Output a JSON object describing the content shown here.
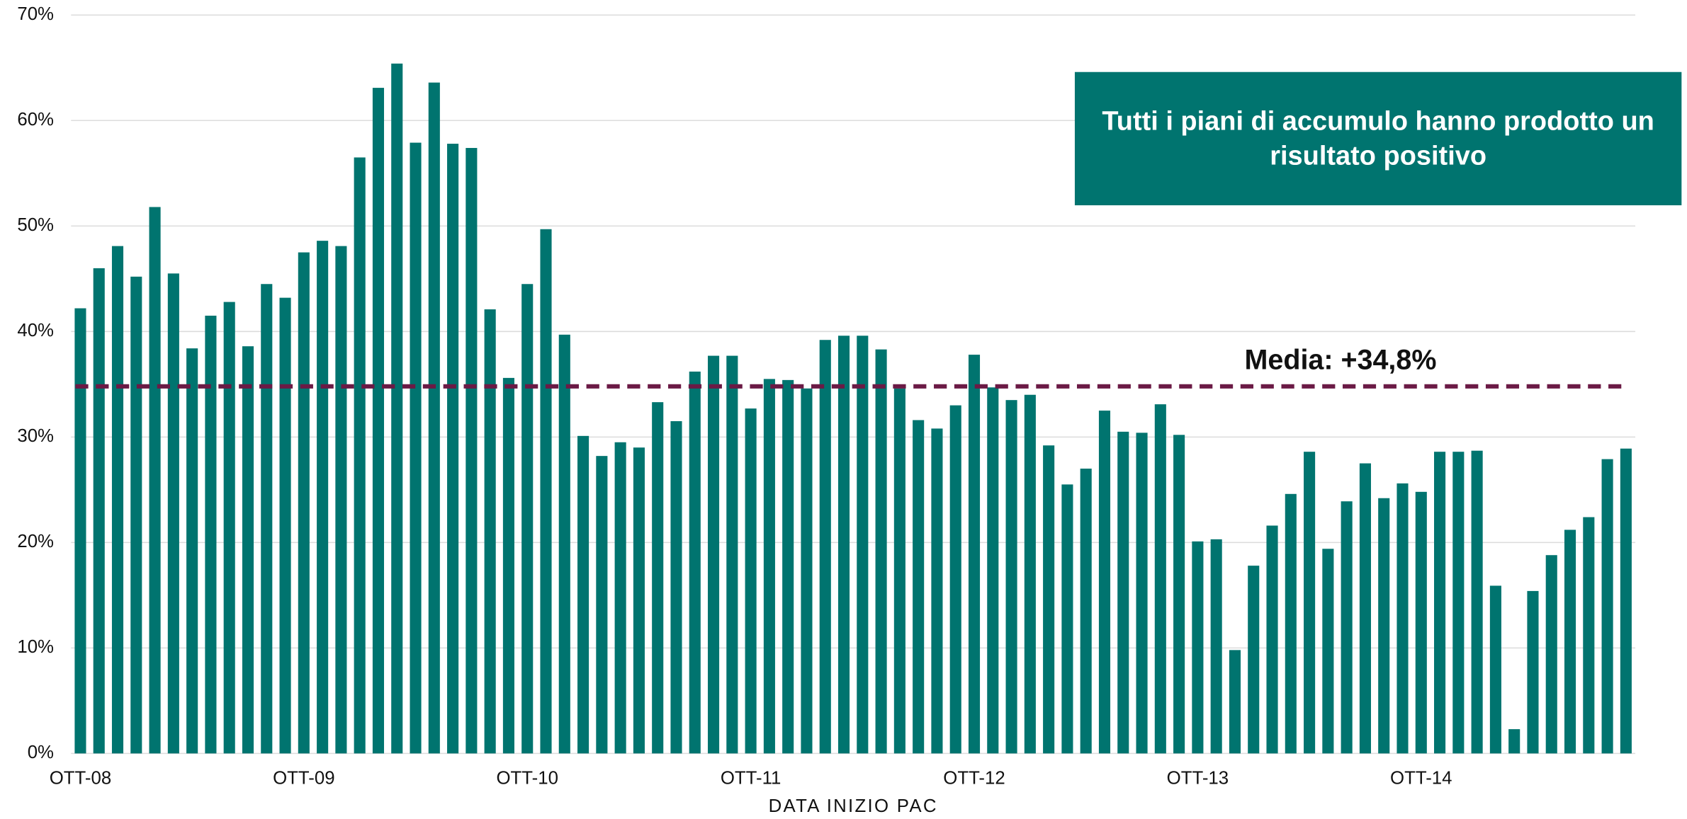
{
  "chart_data": {
    "type": "bar",
    "x_label": "DATA INIZIO PAC",
    "annotation": "Tutti i piani di accumulo hanno prodotto un risultato positivo",
    "mean": {
      "value": 34.8,
      "label": "Media: +34,8%"
    },
    "mean_color": "#6b1a45",
    "color": "#00746f",
    "grid": true,
    "categories": [
      "OTT-08",
      null,
      null,
      null,
      null,
      null,
      null,
      null,
      null,
      null,
      null,
      null,
      "OTT-09",
      null,
      null,
      null,
      null,
      null,
      null,
      null,
      null,
      null,
      null,
      null,
      "OTT-10",
      null,
      null,
      null,
      null,
      null,
      null,
      null,
      null,
      null,
      null,
      null,
      "OTT-11",
      null,
      null,
      null,
      null,
      null,
      null,
      null,
      null,
      null,
      null,
      null,
      "OTT-12",
      null,
      null,
      null,
      null,
      null,
      null,
      null,
      null,
      null,
      null,
      null,
      "OTT-13",
      null,
      null,
      null,
      null,
      null,
      null,
      null,
      null,
      null,
      null,
      null,
      "OTT-14",
      null,
      null,
      null,
      null,
      null,
      null,
      null,
      null,
      null,
      null,
      null
    ],
    "values": [
      42.2,
      46,
      48.1,
      45.2,
      51.8,
      45.5,
      38.4,
      41.5,
      42.8,
      38.6,
      44.5,
      43.2,
      47.5,
      48.6,
      48.1,
      56.5,
      63.1,
      65.4,
      57.9,
      63.6,
      57.8,
      57.4,
      42.1,
      35.6,
      44.5,
      49.7,
      39.7,
      30.1,
      28.2,
      29.5,
      29,
      33.3,
      31.5,
      36.2,
      37.7,
      37.7,
      32.7,
      35.5,
      35.4,
      34.6,
      39.2,
      39.6,
      39.6,
      38.3,
      34.6,
      31.6,
      30.8,
      33,
      37.8,
      34.7,
      33.5,
      34,
      29.2,
      25.5,
      27,
      32.5,
      30.5,
      30.4,
      33.1,
      30.2,
      20.1,
      20.3,
      9.8,
      17.8,
      21.6,
      24.6,
      28.6,
      19.4,
      23.9,
      27.5,
      24.2,
      25.6,
      24.8,
      28.6,
      28.6,
      28.7,
      15.9,
      2.3,
      15.4,
      18.8,
      21.2,
      22.4,
      27.9,
      28.9
    ],
    "ylim": [
      0,
      70
    ],
    "yticks": [
      {
        "value": 0,
        "label": "0%"
      },
      {
        "value": 10,
        "label": "10%"
      },
      {
        "value": 20,
        "label": "20%"
      },
      {
        "value": 30,
        "label": "30%"
      },
      {
        "value": 40,
        "label": "40%"
      },
      {
        "value": 50,
        "label": "50%"
      },
      {
        "value": 60,
        "label": "60%"
      },
      {
        "value": 70,
        "label": "70%"
      }
    ]
  }
}
